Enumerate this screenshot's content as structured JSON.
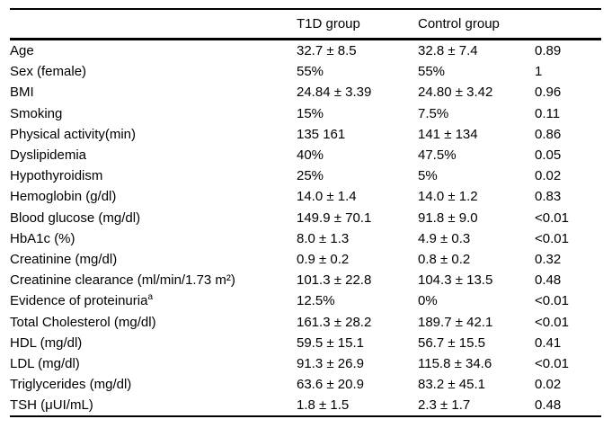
{
  "table": {
    "title": "",
    "header": {
      "label": "",
      "t1d": "T1D group",
      "control": "Control group",
      "p": ""
    },
    "rows": [
      {
        "label": "Age",
        "t1d": "32.7 ± 8.5",
        "control": "32.8 ± 7.4",
        "p": "0.89"
      },
      {
        "label": "Sex (female)",
        "t1d": "55%",
        "control": "55%",
        "p": "1"
      },
      {
        "label": "BMI",
        "t1d": "24.84 ± 3.39",
        "control": "24.80 ± 3.42",
        "p": "0.96"
      },
      {
        "label": "Smoking",
        "t1d": "15%",
        "control": "7.5%",
        "p": "0.11"
      },
      {
        "label": "Physical activity(min)",
        "t1d": "135 161",
        "control": "141 ± 134",
        "p": "0.86"
      },
      {
        "label": "Dyslipidemia",
        "t1d": "40%",
        "control": "47.5%",
        "p": "0.05"
      },
      {
        "label": "Hypothyroidism",
        "t1d": "25%",
        "control": "5%",
        "p": "0.02"
      },
      {
        "label": "Hemoglobin (g/dl)",
        "t1d": "14.0 ± 1.4",
        "control": "14.0 ± 1.2",
        "p": "0.83"
      },
      {
        "label": "Blood glucose (mg/dl)",
        "t1d": "149.9 ± 70.1",
        "control": "91.8 ± 9.0",
        "p": "<0.01"
      },
      {
        "label": "HbA1c (%)",
        "t1d": "8.0 ± 1.3",
        "control": "4.9 ± 0.3",
        "p": "<0.01"
      },
      {
        "label": "Creatinine (mg/dl)",
        "t1d": "0.9 ± 0.2",
        "control": "0.8 ± 0.2",
        "p": "0.32"
      },
      {
        "label": "Creatinine clearance (ml/min/1.73 m²)",
        "t1d": "101.3 ± 22.8",
        "control": "104.3 ± 13.5",
        "p": "0.48"
      },
      {
        "label": "Evidence of proteinuria",
        "label_sup": "a",
        "t1d": "12.5%",
        "control": "0%",
        "p": "<0.01"
      },
      {
        "label": "Total Cholesterol (mg/dl)",
        "t1d": "161.3 ± 28.2",
        "control": "189.7 ± 42.1",
        "p": "<0.01"
      },
      {
        "label": "HDL (mg/dl)",
        "t1d": "59.5 ± 15.1",
        "control": "56.7 ± 15.5",
        "p": "0.41"
      },
      {
        "label": "LDL (mg/dl)",
        "t1d": "91.3 ± 26.9",
        "control": "115.8 ± 34.6",
        "p": "<0.01"
      },
      {
        "label": "Triglycerides (mg/dl)",
        "t1d": "63.6 ± 20.9",
        "control": "83.2 ± 45.1",
        "p": "0.02"
      },
      {
        "label": "TSH (μUI/mL)",
        "t1d": "1.8 ± 1.5",
        "control": "2.3 ± 1.7",
        "p": "0.48"
      }
    ]
  }
}
